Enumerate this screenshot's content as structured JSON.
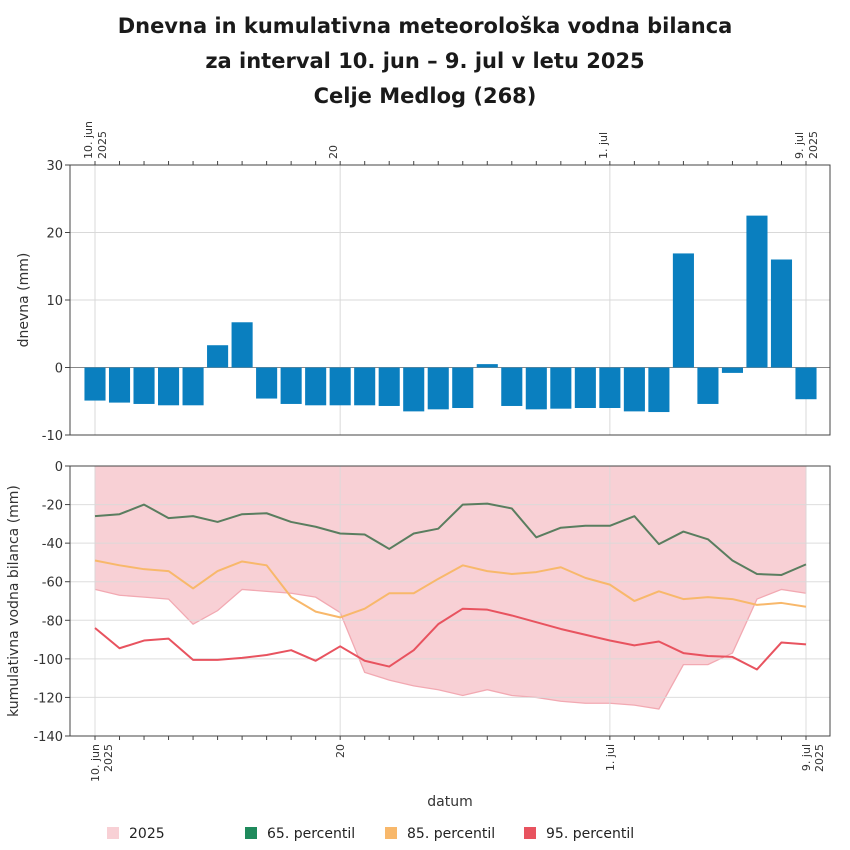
{
  "title": {
    "line1": "Dnevna in kumulativna meteorološka vodna bilanca",
    "line2": "za interval 10. jun – 9. jul v letu 2025",
    "line3": "Celje Medlog (268)"
  },
  "colors": {
    "bar": "#0a7fbf",
    "area_fill": "#f8d0d5",
    "area_line": "#f2a9b2",
    "p65": "#5a7d5f",
    "p85": "#f8b86b",
    "p95": "#e8535f",
    "grid": "#d9d9d9",
    "legend_2025": "#f8d0d5",
    "legend_p65": "#1f8a5c",
    "legend_p85": "#f8b86b",
    "legend_p95": "#e8535f"
  },
  "x_ticks": [
    {
      "day": 0,
      "line1": "10. jun",
      "line2": "2025"
    },
    {
      "day": 10,
      "line1": "20",
      "line2": ""
    },
    {
      "day": 21,
      "line1": "1. jul",
      "line2": ""
    },
    {
      "day": 29,
      "line1": "9. jul",
      "line2": "2025"
    }
  ],
  "x_title": "datum",
  "chart_data": [
    {
      "type": "bar",
      "ylabel": "dnevna (mm)",
      "ylim": [
        -10,
        30
      ],
      "yticks": [
        -10,
        0,
        10,
        20,
        30
      ],
      "x": [
        "2025-06-10",
        "2025-06-11",
        "2025-06-12",
        "2025-06-13",
        "2025-06-14",
        "2025-06-15",
        "2025-06-16",
        "2025-06-17",
        "2025-06-18",
        "2025-06-19",
        "2025-06-20",
        "2025-06-21",
        "2025-06-22",
        "2025-06-23",
        "2025-06-24",
        "2025-06-25",
        "2025-06-26",
        "2025-06-27",
        "2025-06-28",
        "2025-06-29",
        "2025-06-30",
        "2025-07-01",
        "2025-07-02",
        "2025-07-03",
        "2025-07-04",
        "2025-07-05",
        "2025-07-06",
        "2025-07-07",
        "2025-07-08",
        "2025-07-09"
      ],
      "values": [
        -4.9,
        -5.2,
        -5.4,
        -5.6,
        -5.6,
        3.3,
        6.7,
        -4.6,
        -5.4,
        -5.6,
        -5.6,
        -5.6,
        -5.7,
        -6.5,
        -6.2,
        -6.0,
        0.5,
        -5.7,
        -6.2,
        -6.1,
        -6.0,
        -6.0,
        -6.5,
        -6.6,
        16.9,
        -5.4,
        -0.8,
        22.5,
        16.0,
        -4.7
      ]
    },
    {
      "type": "line",
      "ylabel": "kumulativna vodna bilanca (mm)",
      "ylim": [
        -140,
        0
      ],
      "yticks": [
        -140,
        -120,
        -100,
        -80,
        -60,
        -40,
        -20,
        0
      ],
      "x": [
        "2025-06-10",
        "2025-06-11",
        "2025-06-12",
        "2025-06-13",
        "2025-06-14",
        "2025-06-15",
        "2025-06-16",
        "2025-06-17",
        "2025-06-18",
        "2025-06-19",
        "2025-06-20",
        "2025-06-21",
        "2025-06-22",
        "2025-06-23",
        "2025-06-24",
        "2025-06-25",
        "2025-06-26",
        "2025-06-27",
        "2025-06-28",
        "2025-06-29",
        "2025-06-30",
        "2025-07-01",
        "2025-07-02",
        "2025-07-03",
        "2025-07-04",
        "2025-07-05",
        "2025-07-06",
        "2025-07-07",
        "2025-07-08",
        "2025-07-09"
      ],
      "series": [
        {
          "name": "2025",
          "kind": "area",
          "values": [
            -64,
            -67,
            -68,
            -69,
            -82,
            -75,
            -64,
            -65,
            -66,
            -68,
            -76,
            -107,
            -111,
            -114,
            -116,
            -119,
            -116,
            -119,
            -120,
            -122,
            -123,
            -123,
            -124,
            -126,
            -103,
            -103,
            -97,
            -69,
            -64,
            -66
          ]
        },
        {
          "name": "65. percentil",
          "kind": "line",
          "values": [
            -26,
            -25,
            -20,
            -27,
            -26,
            -29,
            -25,
            -24.5,
            -29,
            -31.5,
            -35,
            -35.5,
            -43,
            -35,
            -32.5,
            -20,
            -19.5,
            -22,
            -37,
            -32,
            -31,
            -31,
            -26,
            -40.5,
            -34,
            -38,
            -49,
            -56,
            -56.5,
            -51
          ]
        },
        {
          "name": "85. percentil",
          "kind": "line",
          "values": [
            -49,
            -51.5,
            -53.5,
            -54.5,
            -63.5,
            -54.5,
            -49.5,
            -51.5,
            -68,
            -75.5,
            -78.5,
            -74,
            -66,
            -66,
            -58.5,
            -51.5,
            -54.5,
            -56,
            -55,
            -52.5,
            -58,
            -61.5,
            -70,
            -65,
            -69,
            -68,
            -69,
            -72,
            -71,
            -73
          ]
        },
        {
          "name": "95. percentil",
          "kind": "line",
          "values": [
            -84,
            -94.5,
            -90.5,
            -89.5,
            -100.5,
            -100.5,
            -99.5,
            -98,
            -95.5,
            -101,
            -93.5,
            -101,
            -104,
            -95.5,
            -82,
            -74,
            -74.5,
            -77.5,
            -81,
            -84.5,
            -87.5,
            -90.5,
            -93,
            -91,
            -97,
            -98.5,
            -99,
            -105.5,
            -91.5,
            -92.5
          ]
        }
      ]
    }
  ],
  "legend": [
    {
      "label": "2025"
    },
    {
      "label": "65. percentil"
    },
    {
      "label": "85. percentil"
    },
    {
      "label": "95. percentil"
    }
  ]
}
